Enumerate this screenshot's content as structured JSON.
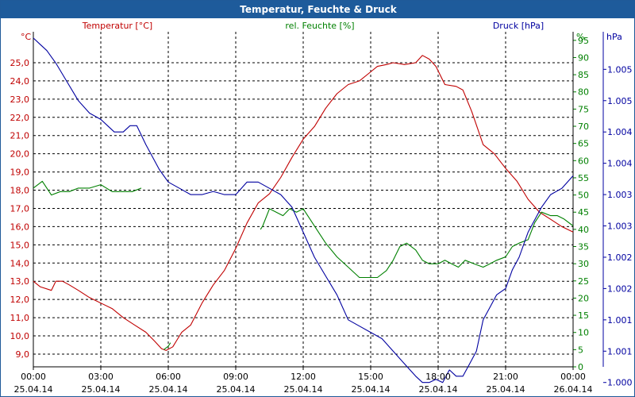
{
  "window": {
    "title": "Temperatur, Feuchte & Druck"
  },
  "colors": {
    "temperature": "#c00000",
    "humidity": "#008000",
    "pressure": "#0000a0",
    "title_bg": "#1e5b9b",
    "grid": "#000000"
  },
  "chart_data": {
    "type": "line",
    "title": "Temperatur, Feuchte & Druck",
    "legend": {
      "temperature": "Temperatur [°C]",
      "humidity": "rel. Feuchte [%]",
      "pressure": "Druck [hPa]"
    },
    "axes": {
      "temperature": {
        "unit": "°C",
        "ylim": [
          8.3,
          26.7
        ],
        "ticks": [
          "9,0",
          "10,0",
          "11,0",
          "12,0",
          "13,0",
          "14,0",
          "15,0",
          "16,0",
          "17,0",
          "18,0",
          "19,0",
          "20,0",
          "21,0",
          "22,0",
          "23,0",
          "24,0",
          "25,0"
        ]
      },
      "humidity": {
        "unit": "%",
        "ylim": [
          0,
          97.5
        ],
        "ticks": [
          "0",
          "5",
          "10",
          "15",
          "20",
          "25",
          "30",
          "35",
          "40",
          "45",
          "50",
          "55",
          "60",
          "65",
          "70",
          "75",
          "80",
          "85",
          "90",
          "95"
        ]
      },
      "pressure": {
        "unit": "hPa",
        "ylim": [
          1000.25,
          1005.6
        ],
        "ticks": [
          "1.000",
          "1.001",
          "1.001",
          "1.002",
          "1.002",
          "1.003",
          "1.003",
          "1.004",
          "1.004",
          "1.005",
          "1.005"
        ]
      }
    },
    "xlim": [
      0,
      24
    ],
    "x_ticks": [
      {
        "time": "00:00",
        "date": "25.04.14"
      },
      {
        "time": "03:00",
        "date": "25.04.14"
      },
      {
        "time": "06:00",
        "date": "25.04.14"
      },
      {
        "time": "09:00",
        "date": "25.04.14"
      },
      {
        "time": "12:00",
        "date": "25.04.14"
      },
      {
        "time": "15:00",
        "date": "25.04.14"
      },
      {
        "time": "18:00",
        "date": "25.04.14"
      },
      {
        "time": "21:00",
        "date": "25.04.14"
      },
      {
        "time": "00:00",
        "date": "26.04.14"
      }
    ],
    "series": [
      {
        "name": "Temperatur",
        "axis": "temperature",
        "x": [
          0,
          0.3,
          0.8,
          1.0,
          1.3,
          1.6,
          2.0,
          2.5,
          3.0,
          3.5,
          4.0,
          4.5,
          5.0,
          5.4,
          5.7,
          5.9,
          6.2,
          6.4,
          6.6,
          7.0,
          7.5,
          8.0,
          8.5,
          9.0,
          9.5,
          10.0,
          10.5,
          11.0,
          11.5,
          12.0,
          12.5,
          13.0,
          13.5,
          14.0,
          14.5,
          15.0,
          15.3,
          15.7,
          16.0,
          16.5,
          17.0,
          17.3,
          17.6,
          17.9,
          18.3,
          18.8,
          19.1,
          19.5,
          20.0,
          20.5,
          21.0,
          21.5,
          22.0,
          22.5,
          23.0,
          23.5,
          24.0
        ],
        "values": [
          13.0,
          12.7,
          12.5,
          13.0,
          13.0,
          12.8,
          12.5,
          12.1,
          11.8,
          11.5,
          11.0,
          10.6,
          10.2,
          9.7,
          9.3,
          9.2,
          9.4,
          9.8,
          10.2,
          10.6,
          11.8,
          12.8,
          13.6,
          14.8,
          16.2,
          17.3,
          17.8,
          18.7,
          19.8,
          20.8,
          21.5,
          22.5,
          23.3,
          23.8,
          24.0,
          24.5,
          24.8,
          24.9,
          25.0,
          24.9,
          25.0,
          25.4,
          25.2,
          24.8,
          23.8,
          23.7,
          23.5,
          22.3,
          20.5,
          20.0,
          19.2,
          18.5,
          17.5,
          16.8,
          16.4,
          16.0,
          15.7
        ]
      },
      {
        "name": "rel. Feuchte",
        "axis": "humidity",
        "x": [
          0,
          0.4,
          0.8,
          1.2,
          1.6,
          2.0,
          2.5,
          3.0,
          3.5,
          4.0,
          4.4,
          4.8,
          null,
          5.8,
          6.0,
          6.1,
          null,
          10.1,
          10.2,
          10.5,
          10.8,
          11.1,
          11.4,
          11.7,
          12.0,
          12.3,
          12.6,
          13.0,
          13.5,
          14.0,
          14.5,
          15.0,
          15.3,
          15.7,
          16.0,
          16.3,
          16.6,
          17.0,
          17.3,
          17.6,
          18.0,
          18.3,
          18.6,
          18.9,
          19.2,
          19.6,
          20.0,
          20.3,
          20.6,
          21.0,
          21.3,
          21.6,
          22.0,
          22.3,
          22.6,
          23.0,
          23.3,
          23.6,
          24.0
        ],
        "values": [
          52,
          54,
          50,
          51,
          51,
          52,
          52,
          53,
          51,
          51,
          51,
          52,
          null,
          5,
          6,
          7,
          null,
          40,
          41,
          46,
          45,
          44,
          46,
          45,
          46,
          43,
          40,
          36,
          32,
          29,
          26,
          26,
          26,
          28,
          31,
          35,
          36,
          34,
          31,
          30,
          30,
          31,
          30,
          29,
          31,
          30,
          29,
          30,
          31,
          32,
          35,
          36,
          37,
          42,
          45,
          44,
          44,
          43,
          41
        ]
      },
      {
        "name": "Druck",
        "axis": "pressure",
        "x": [
          0,
          0.3,
          0.6,
          1.0,
          1.5,
          2.0,
          2.5,
          3.0,
          3.3,
          3.6,
          4.0,
          4.3,
          4.6,
          5.0,
          5.3,
          5.6,
          6.0,
          6.5,
          7.0,
          7.5,
          8.0,
          8.5,
          9.0,
          9.5,
          10.0,
          10.5,
          11.0,
          11.5,
          12.0,
          12.5,
          13.0,
          13.5,
          14.0,
          14.5,
          15.0,
          15.5,
          16.0,
          16.5,
          17.0,
          17.3,
          17.6,
          17.9,
          18.2,
          18.5,
          18.8,
          19.1,
          19.4,
          19.7,
          20.0,
          20.3,
          20.6,
          21.0,
          21.3,
          21.6,
          22.0,
          22.3,
          22.6,
          23.0,
          23.5,
          24.0
        ],
        "values": [
          1005.5,
          1005.4,
          1005.3,
          1005.1,
          1004.8,
          1004.5,
          1004.3,
          1004.2,
          1004.1,
          1004.0,
          1004.0,
          1004.1,
          1004.1,
          1003.8,
          1003.6,
          1003.4,
          1003.2,
          1003.1,
          1003.0,
          1003.0,
          1003.05,
          1003.0,
          1003.0,
          1003.2,
          1003.2,
          1003.1,
          1003.0,
          1002.8,
          1002.4,
          1002.0,
          1001.7,
          1001.4,
          1001.0,
          1000.9,
          1000.8,
          1000.7,
          1000.5,
          1000.3,
          1000.1,
          1000.0,
          1000.0,
          1000.05,
          1000.0,
          1000.2,
          1000.1,
          1000.1,
          1000.3,
          1000.5,
          1001.0,
          1001.2,
          1001.4,
          1001.5,
          1001.8,
          1002.0,
          1002.4,
          1002.6,
          1002.8,
          1003.0,
          1003.1,
          1003.3
        ]
      }
    ]
  }
}
